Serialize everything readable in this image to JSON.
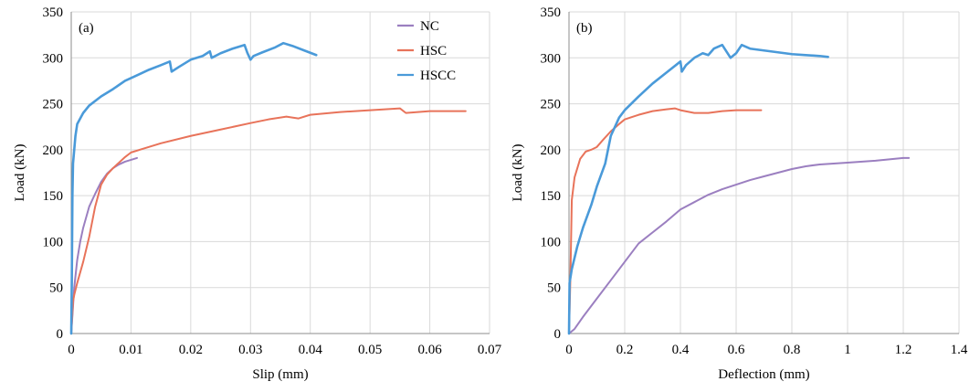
{
  "chart_data": [
    {
      "type": "line",
      "panel_label": "(a)",
      "xlabel": "Slip (mm)",
      "ylabel": "Load (kN)",
      "xlim": [
        0,
        0.07
      ],
      "ylim": [
        0,
        350
      ],
      "xticks": [
        0,
        0.01,
        0.02,
        0.03,
        0.04,
        0.05,
        0.06,
        0.07
      ],
      "xtick_labels": [
        "0",
        "0.01",
        "0.02",
        "0.03",
        "0.04",
        "0.05",
        "0.06",
        "0.07"
      ],
      "yticks": [
        0,
        50,
        100,
        150,
        200,
        250,
        300,
        350
      ],
      "ytick_labels": [
        "0",
        "50",
        "100",
        "150",
        "200",
        "250",
        "300",
        "350"
      ],
      "grid": true,
      "legend": "top-right",
      "series": [
        {
          "name": "NC",
          "color": "#9b7fc0",
          "points": [
            [
              0,
              0
            ],
            [
              0.0002,
              20
            ],
            [
              0.0005,
              50
            ],
            [
              0.001,
              80
            ],
            [
              0.0015,
              100
            ],
            [
              0.002,
              115
            ],
            [
              0.003,
              138
            ],
            [
              0.004,
              152
            ],
            [
              0.005,
              165
            ],
            [
              0.006,
              174
            ],
            [
              0.007,
              180
            ],
            [
              0.008,
              184
            ],
            [
              0.009,
              187
            ],
            [
              0.01,
              189
            ],
            [
              0.011,
              191
            ]
          ]
        },
        {
          "name": "HSC",
          "color": "#e8735a",
          "points": [
            [
              0,
              0
            ],
            [
              0.0003,
              35
            ],
            [
              0.0005,
              42
            ],
            [
              0.001,
              55
            ],
            [
              0.002,
              78
            ],
            [
              0.003,
              105
            ],
            [
              0.004,
              138
            ],
            [
              0.005,
              162
            ],
            [
              0.006,
              173
            ],
            [
              0.007,
              180
            ],
            [
              0.008,
              186
            ],
            [
              0.009,
              192
            ],
            [
              0.01,
              197
            ],
            [
              0.012,
              201
            ],
            [
              0.015,
              207
            ],
            [
              0.02,
              215
            ],
            [
              0.025,
              222
            ],
            [
              0.03,
              229
            ],
            [
              0.033,
              233
            ],
            [
              0.036,
              236
            ],
            [
              0.038,
              234
            ],
            [
              0.04,
              238
            ],
            [
              0.045,
              241
            ],
            [
              0.05,
              243
            ],
            [
              0.055,
              245
            ],
            [
              0.056,
              240
            ],
            [
              0.06,
              242
            ],
            [
              0.066,
              242
            ]
          ]
        },
        {
          "name": "HSCC",
          "color": "#4a9ad9",
          "points": [
            [
              0,
              0
            ],
            [
              0.0001,
              60
            ],
            [
              0.0002,
              150
            ],
            [
              0.0003,
              185
            ],
            [
              0.0005,
              200
            ],
            [
              0.0007,
              215
            ],
            [
              0.001,
              228
            ],
            [
              0.002,
              240
            ],
            [
              0.003,
              248
            ],
            [
              0.005,
              258
            ],
            [
              0.007,
              266
            ],
            [
              0.009,
              275
            ],
            [
              0.011,
              281
            ],
            [
              0.013,
              287
            ],
            [
              0.015,
              292
            ],
            [
              0.0165,
              296
            ],
            [
              0.0168,
              285
            ],
            [
              0.018,
              290
            ],
            [
              0.02,
              298
            ],
            [
              0.022,
              302
            ],
            [
              0.0232,
              307
            ],
            [
              0.0235,
              300
            ],
            [
              0.025,
              305
            ],
            [
              0.027,
              310
            ],
            [
              0.029,
              314
            ],
            [
              0.0295,
              305
            ],
            [
              0.03,
              298
            ],
            [
              0.0305,
              302
            ],
            [
              0.032,
              306
            ],
            [
              0.034,
              311
            ],
            [
              0.0355,
              316
            ],
            [
              0.037,
              313
            ],
            [
              0.039,
              308
            ],
            [
              0.041,
              303
            ]
          ]
        }
      ]
    },
    {
      "type": "line",
      "panel_label": "(b)",
      "xlabel": "Deflection (mm)",
      "ylabel": "Load (kN)",
      "xlim": [
        0,
        1.4
      ],
      "ylim": [
        0,
        350
      ],
      "xticks": [
        0,
        0.2,
        0.4,
        0.6,
        0.8,
        1,
        1.2,
        1.4
      ],
      "xtick_labels": [
        "0",
        "0.2",
        "0.4",
        "0.6",
        "0.8",
        "1",
        "1.2",
        "1.4"
      ],
      "yticks": [
        0,
        50,
        100,
        150,
        200,
        250,
        300,
        350
      ],
      "ytick_labels": [
        "0",
        "50",
        "100",
        "150",
        "200",
        "250",
        "300",
        "350"
      ],
      "grid": true,
      "legend": "none",
      "series": [
        {
          "name": "NC",
          "color": "#9b7fc0",
          "points": [
            [
              0,
              0
            ],
            [
              0.02,
              5
            ],
            [
              0.05,
              18
            ],
            [
              0.1,
              38
            ],
            [
              0.15,
              58
            ],
            [
              0.2,
              78
            ],
            [
              0.25,
              98
            ],
            [
              0.3,
              110
            ],
            [
              0.35,
              122
            ],
            [
              0.4,
              135
            ],
            [
              0.45,
              143
            ],
            [
              0.5,
              151
            ],
            [
              0.55,
              157
            ],
            [
              0.6,
              162
            ],
            [
              0.65,
              167
            ],
            [
              0.7,
              171
            ],
            [
              0.75,
              175
            ],
            [
              0.8,
              179
            ],
            [
              0.85,
              182
            ],
            [
              0.9,
              184
            ],
            [
              1,
              186
            ],
            [
              1.1,
              188
            ],
            [
              1.2,
              191
            ],
            [
              1.22,
              191
            ]
          ]
        },
        {
          "name": "HSC",
          "color": "#e8735a",
          "points": [
            [
              0,
              0
            ],
            [
              0.005,
              60
            ],
            [
              0.01,
              145
            ],
            [
              0.02,
              170
            ],
            [
              0.04,
              190
            ],
            [
              0.06,
              198
            ],
            [
              0.08,
              200
            ],
            [
              0.1,
              203
            ],
            [
              0.12,
              210
            ],
            [
              0.15,
              220
            ],
            [
              0.18,
              228
            ],
            [
              0.2,
              233
            ],
            [
              0.25,
              238
            ],
            [
              0.3,
              242
            ],
            [
              0.35,
              244
            ],
            [
              0.38,
              245
            ],
            [
              0.4,
              243
            ],
            [
              0.45,
              240
            ],
            [
              0.5,
              240
            ],
            [
              0.55,
              242
            ],
            [
              0.6,
              243
            ],
            [
              0.65,
              243
            ],
            [
              0.69,
              243
            ]
          ]
        },
        {
          "name": "HSCC",
          "color": "#4a9ad9",
          "points": [
            [
              0,
              0
            ],
            [
              0.002,
              55
            ],
            [
              0.01,
              70
            ],
            [
              0.03,
              95
            ],
            [
              0.05,
              115
            ],
            [
              0.08,
              140
            ],
            [
              0.1,
              160
            ],
            [
              0.13,
              185
            ],
            [
              0.15,
              215
            ],
            [
              0.18,
              235
            ],
            [
              0.2,
              243
            ],
            [
              0.25,
              258
            ],
            [
              0.3,
              272
            ],
            [
              0.35,
              284
            ],
            [
              0.4,
              296
            ],
            [
              0.405,
              285
            ],
            [
              0.42,
              292
            ],
            [
              0.45,
              300
            ],
            [
              0.48,
              305
            ],
            [
              0.5,
              303
            ],
            [
              0.52,
              310
            ],
            [
              0.55,
              314
            ],
            [
              0.58,
              300
            ],
            [
              0.6,
              305
            ],
            [
              0.62,
              314
            ],
            [
              0.65,
              310
            ],
            [
              0.7,
              308
            ],
            [
              0.75,
              306
            ],
            [
              0.8,
              304
            ],
            [
              0.85,
              303
            ],
            [
              0.9,
              302
            ],
            [
              0.93,
              301
            ]
          ]
        }
      ]
    }
  ]
}
